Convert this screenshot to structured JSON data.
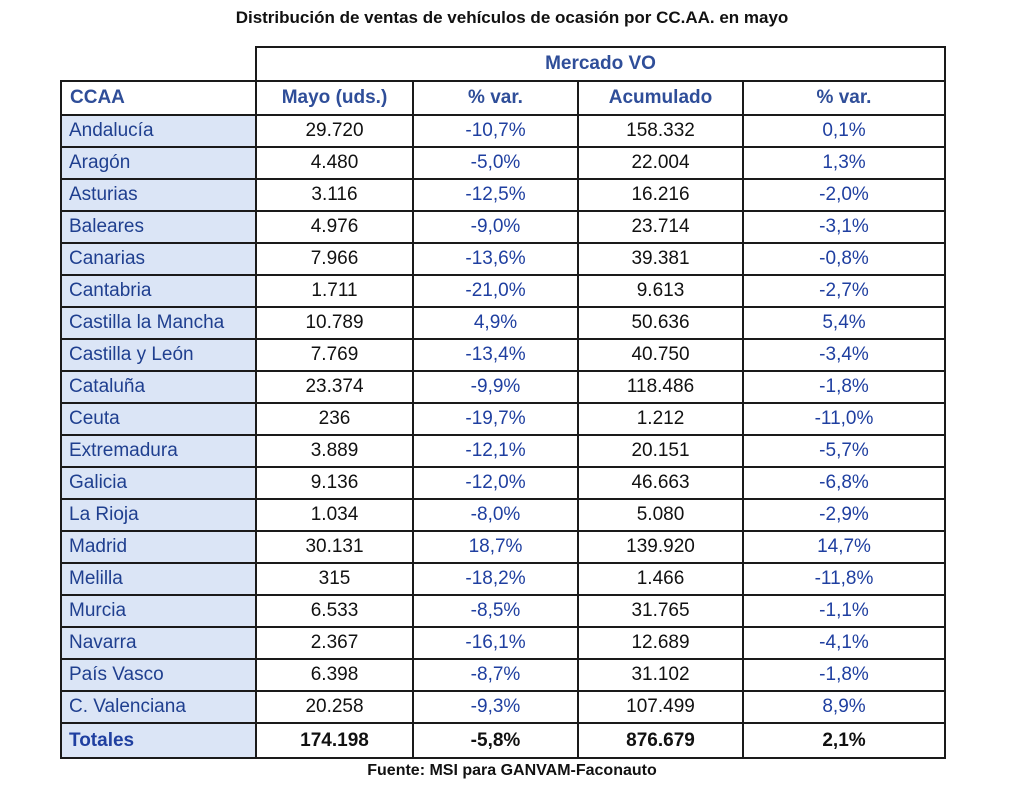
{
  "title": "Distribución de ventas de vehículos de ocasión por CC.AA. en mayo",
  "group_header": "Mercado VO",
  "columns": {
    "ccaa": "CCAA",
    "mayo": "Mayo (uds.)",
    "var_mayo": "% var.",
    "acumulado": "Acumulado",
    "var_acum": "% var."
  },
  "rows": [
    {
      "ccaa": "Andalucía",
      "mayo": "29.720",
      "var_mayo": "-10,7%",
      "acumulado": "158.332",
      "var_acum": "0,1%"
    },
    {
      "ccaa": "Aragón",
      "mayo": "4.480",
      "var_mayo": "-5,0%",
      "acumulado": "22.004",
      "var_acum": "1,3%"
    },
    {
      "ccaa": "Asturias",
      "mayo": "3.116",
      "var_mayo": "-12,5%",
      "acumulado": "16.216",
      "var_acum": "-2,0%"
    },
    {
      "ccaa": "Baleares",
      "mayo": "4.976",
      "var_mayo": "-9,0%",
      "acumulado": "23.714",
      "var_acum": "-3,1%"
    },
    {
      "ccaa": "Canarias",
      "mayo": "7.966",
      "var_mayo": "-13,6%",
      "acumulado": "39.381",
      "var_acum": "-0,8%"
    },
    {
      "ccaa": "Cantabria",
      "mayo": "1.711",
      "var_mayo": "-21,0%",
      "acumulado": "9.613",
      "var_acum": "-2,7%"
    },
    {
      "ccaa": "Castilla la Mancha",
      "mayo": "10.789",
      "var_mayo": "4,9%",
      "acumulado": "50.636",
      "var_acum": "5,4%"
    },
    {
      "ccaa": "Castilla y León",
      "mayo": "7.769",
      "var_mayo": "-13,4%",
      "acumulado": "40.750",
      "var_acum": "-3,4%"
    },
    {
      "ccaa": "Cataluña",
      "mayo": "23.374",
      "var_mayo": "-9,9%",
      "acumulado": "118.486",
      "var_acum": "-1,8%"
    },
    {
      "ccaa": "Ceuta",
      "mayo": "236",
      "var_mayo": "-19,7%",
      "acumulado": "1.212",
      "var_acum": "-11,0%"
    },
    {
      "ccaa": "Extremadura",
      "mayo": "3.889",
      "var_mayo": "-12,1%",
      "acumulado": "20.151",
      "var_acum": "-5,7%"
    },
    {
      "ccaa": "Galicia",
      "mayo": "9.136",
      "var_mayo": "-12,0%",
      "acumulado": "46.663",
      "var_acum": "-6,8%"
    },
    {
      "ccaa": "La Rioja",
      "mayo": "1.034",
      "var_mayo": "-8,0%",
      "acumulado": "5.080",
      "var_acum": "-2,9%"
    },
    {
      "ccaa": "Madrid",
      "mayo": "30.131",
      "var_mayo": "18,7%",
      "acumulado": "139.920",
      "var_acum": "14,7%"
    },
    {
      "ccaa": "Melilla",
      "mayo": "315",
      "var_mayo": "-18,2%",
      "acumulado": "1.466",
      "var_acum": "-11,8%"
    },
    {
      "ccaa": "Murcia",
      "mayo": "6.533",
      "var_mayo": "-8,5%",
      "acumulado": "31.765",
      "var_acum": "-1,1%"
    },
    {
      "ccaa": "Navarra",
      "mayo": "2.367",
      "var_mayo": "-16,1%",
      "acumulado": "12.689",
      "var_acum": "-4,1%"
    },
    {
      "ccaa": "País Vasco",
      "mayo": "6.398",
      "var_mayo": "-8,7%",
      "acumulado": "31.102",
      "var_acum": "-1,8%"
    },
    {
      "ccaa": "C. Valenciana",
      "mayo": "20.258",
      "var_mayo": "-9,3%",
      "acumulado": "107.499",
      "var_acum": "8,9%"
    }
  ],
  "totals": {
    "ccaa": "Totales",
    "mayo": "174.198",
    "var_mayo": "-5,8%",
    "acumulado": "876.679",
    "var_acum": "2,1%"
  },
  "source": "Fuente: MSI para GANVAM-Faconauto",
  "colors": {
    "header_text": "#2f4e99",
    "region_fill": "#dbe5f6",
    "region_text": "#1f3f8f",
    "pct_text": "#1f3fa0",
    "border": "#1a1a1a"
  }
}
